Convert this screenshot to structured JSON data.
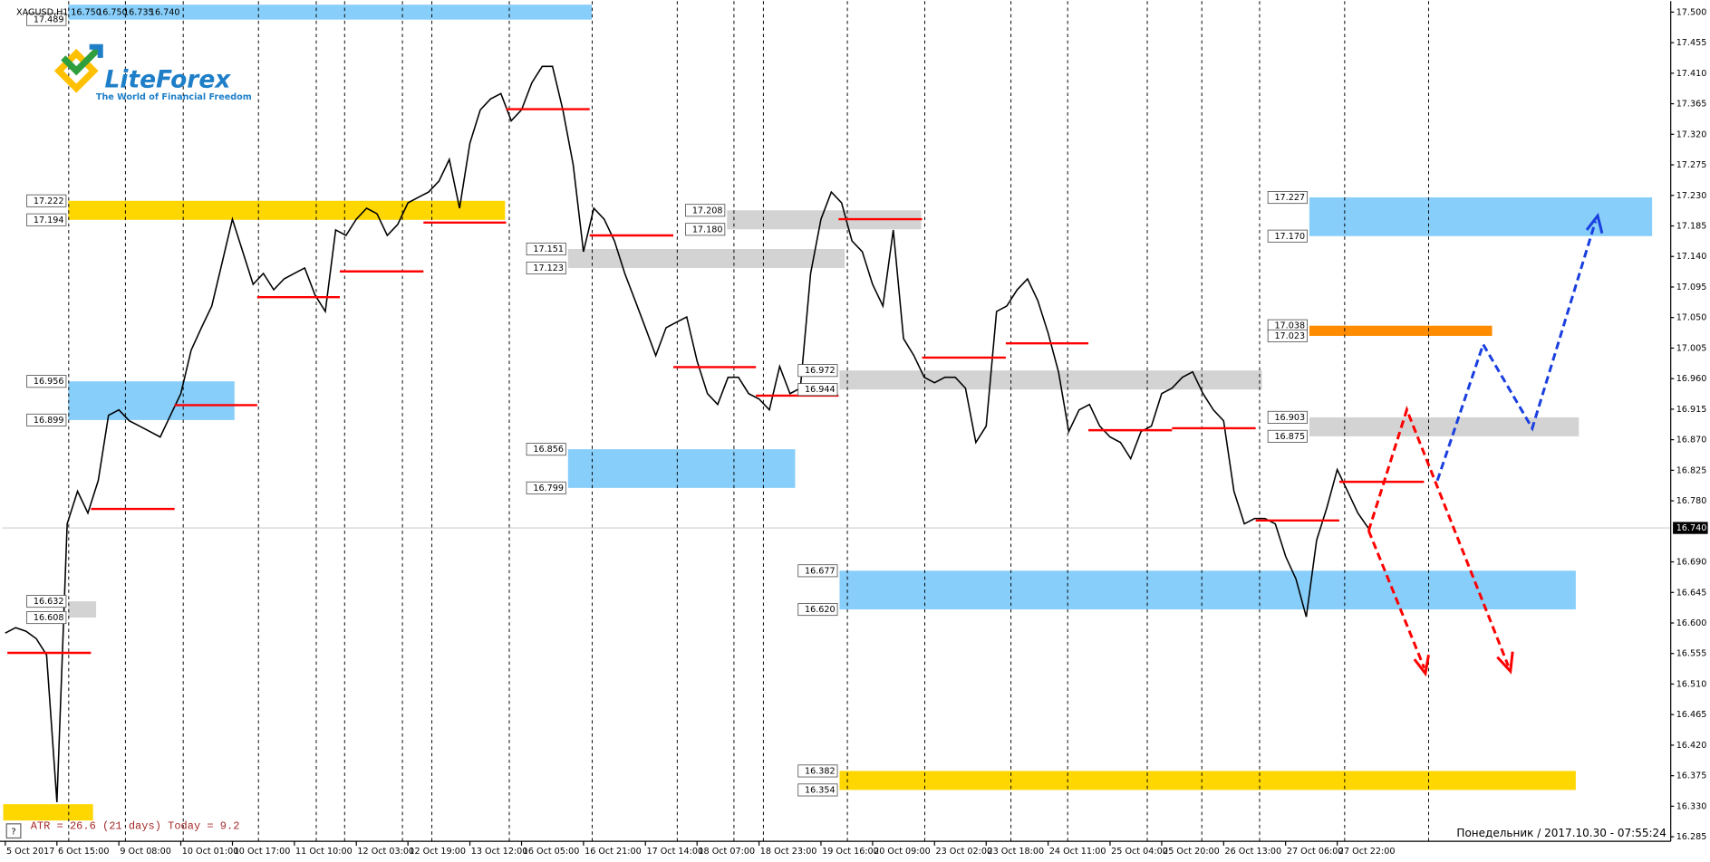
{
  "header": {
    "symbol": "XAGUSD,H1",
    "ohlc": [
      "16.750",
      "16.750",
      "16.735",
      "16.740"
    ]
  },
  "logo": {
    "name": "LiteForex",
    "tagline": "The World of Financial Freedom"
  },
  "chart_data": {
    "type": "line",
    "color": "#000000",
    "x": [
      0,
      1,
      2,
      3,
      4,
      5,
      6,
      7,
      8,
      9,
      10,
      11,
      12,
      13,
      14,
      15,
      16,
      17,
      18,
      19,
      20,
      21,
      22,
      23,
      24,
      25,
      26,
      27,
      28,
      29,
      30,
      31,
      32,
      33,
      34,
      35,
      36,
      37,
      38,
      39,
      40,
      41,
      42,
      43,
      44,
      45,
      46,
      47,
      48,
      49,
      50,
      51,
      52,
      53,
      54,
      55,
      56,
      57,
      58,
      59,
      60,
      61,
      62,
      63,
      64,
      65,
      66,
      67,
      68,
      69,
      70,
      71,
      72,
      73,
      74,
      75,
      76,
      77,
      78,
      79,
      80,
      81,
      82,
      83,
      84,
      85,
      86,
      87,
      88,
      89,
      90,
      91,
      92,
      93,
      94,
      95,
      96,
      97,
      98,
      99,
      100,
      101,
      102,
      103,
      104,
      105,
      106,
      107,
      108,
      109,
      110,
      111,
      112,
      113,
      114,
      115,
      116,
      117,
      118,
      119,
      120,
      121,
      122,
      123,
      124,
      125,
      126,
      127,
      128,
      129,
      130,
      131,
      132
    ],
    "values": [
      16.585,
      16.593,
      16.588,
      16.577,
      16.553,
      16.336,
      16.746,
      16.794,
      16.762,
      16.81,
      16.906,
      16.914,
      16.898,
      16.89,
      16.882,
      16.874,
      16.906,
      16.938,
      17.002,
      17.035,
      17.067,
      17.131,
      17.195,
      17.147,
      17.099,
      17.115,
      17.091,
      17.107,
      17.115,
      17.123,
      17.083,
      17.059,
      17.179,
      17.171,
      17.195,
      17.211,
      17.203,
      17.171,
      17.187,
      17.219,
      17.227,
      17.235,
      17.251,
      17.283,
      17.211,
      17.307,
      17.356,
      17.372,
      17.38,
      17.34,
      17.356,
      17.396,
      17.42,
      17.42,
      17.356,
      17.275,
      17.147,
      17.211,
      17.195,
      17.163,
      17.115,
      17.075,
      17.035,
      16.994,
      17.035,
      17.043,
      17.051,
      16.986,
      16.938,
      16.922,
      16.962,
      16.962,
      16.938,
      16.93,
      16.914,
      16.978,
      16.938,
      16.946,
      17.115,
      17.195,
      17.235,
      17.219,
      17.163,
      17.147,
      17.099,
      17.067,
      17.179,
      17.019,
      16.994,
      16.962,
      16.954,
      16.962,
      16.962,
      16.946,
      16.866,
      16.89,
      17.059,
      17.067,
      17.091,
      17.107,
      17.075,
      17.027,
      16.97,
      16.882,
      16.914,
      16.922,
      16.89,
      16.874,
      16.866,
      16.842,
      16.882,
      16.89,
      16.938,
      16.946,
      16.962,
      16.97,
      16.938,
      16.914,
      16.898,
      16.794,
      16.746,
      16.754,
      16.754,
      16.746,
      16.698,
      16.665,
      16.609,
      16.722,
      16.77,
      16.826,
      16.794,
      16.762,
      16.74
    ],
    "xlim": [
      -0.3,
      161.3
    ],
    "xticks": [
      {
        "value": 0,
        "label": "5 Oct 2017"
      },
      {
        "value": 5,
        "label": "6 Oct 15:00"
      },
      {
        "value": 11,
        "label": "9 Oct 08:00"
      },
      {
        "value": 17,
        "label": "10 Oct 01:00"
      },
      {
        "value": 22,
        "label": "10 Oct 17:00"
      },
      {
        "value": 28,
        "label": "11 Oct 10:00"
      },
      {
        "value": 34,
        "label": "12 Oct 03:00"
      },
      {
        "value": 39,
        "label": "12 Oct 19:00"
      },
      {
        "value": 45,
        "label": "13 Oct 12:00"
      },
      {
        "value": 50,
        "label": "16 Oct 05:00"
      },
      {
        "value": 56,
        "label": "16 Oct 21:00"
      },
      {
        "value": 62,
        "label": "17 Oct 14:00"
      },
      {
        "value": 67,
        "label": "18 Oct 07:00"
      },
      {
        "value": 73,
        "label": "18 Oct 23:00"
      },
      {
        "value": 79,
        "label": "19 Oct 16:00"
      },
      {
        "value": 84,
        "label": "20 Oct 09:00"
      },
      {
        "value": 90,
        "label": "23 Oct 02:00"
      },
      {
        "value": 95,
        "label": "23 Oct 18:00"
      },
      {
        "value": 101,
        "label": "24 Oct 11:00"
      },
      {
        "value": 107,
        "label": "25 Oct 04:00"
      },
      {
        "value": 112,
        "label": "25 Oct 20:00"
      },
      {
        "value": 118,
        "label": "26 Oct 13:00"
      },
      {
        "value": 124,
        "label": "27 Oct 06:00"
      },
      {
        "value": 129,
        "label": "27 Oct 22:00"
      }
    ],
    "ylim": [
      16.28,
      17.513
    ],
    "yticks": [
      {
        "value": 17.5,
        "label": "17.500"
      },
      17.455,
      {
        "value": 17.41,
        "label": "17.410"
      },
      17.365,
      {
        "value": 17.32,
        "label": "17.320"
      },
      17.275,
      {
        "value": 17.23,
        "label": "17.230"
      },
      17.185,
      {
        "value": 17.14,
        "label": "17.140"
      },
      17.095,
      {
        "value": 17.05,
        "label": "17.050"
      },
      17.005,
      {
        "value": 16.96,
        "label": "16.960"
      },
      16.915,
      {
        "value": 16.87,
        "label": "16.870"
      },
      16.825,
      {
        "value": 16.78,
        "label": "16.780"
      },
      {
        "value": 16.69,
        "label": "16.690"
      },
      16.645,
      {
        "value": 16.6,
        "label": "16.600"
      },
      16.555,
      {
        "value": 16.51,
        "label": "16.510"
      },
      16.465,
      {
        "value": 16.42,
        "label": "16.420"
      },
      16.375,
      {
        "value": 16.33,
        "label": "16.330"
      },
      16.285
    ],
    "current_price": {
      "value": 16.74,
      "label": "16.740"
    },
    "zones": [
      {
        "values": [
          17.511,
          17.489
        ],
        "value_labels": [
          null,
          "17.489"
        ],
        "x": [
          6.1,
          56.8
        ],
        "color": "#87cefa"
      },
      {
        "values": [
          17.222,
          17.194
        ],
        "value_labels": [
          "17.222",
          "17.194"
        ],
        "x": [
          6.1,
          48.4
        ],
        "color": "#ffd700"
      },
      {
        "values": [
          16.956,
          16.899
        ],
        "value_labels": [
          "16.956",
          "16.899"
        ],
        "x": [
          6.1,
          22.2
        ],
        "color": "#87cefa"
      },
      {
        "values": [
          16.632,
          16.608
        ],
        "value_labels": [
          "16.632",
          "16.608"
        ],
        "x": [
          6.1,
          8.8
        ],
        "color": "#d3d3d3"
      },
      {
        "values": [
          16.333,
          16.309
        ],
        "x": [
          -0.2,
          8.5
        ],
        "color": "#ffd700"
      },
      {
        "values": [
          17.208,
          17.18
        ],
        "value_labels": [
          "17.208",
          "17.180"
        ],
        "x": [
          69.9,
          88.7
        ],
        "color": "#d3d3d3"
      },
      {
        "values": [
          17.151,
          17.123
        ],
        "value_labels": [
          "17.151",
          "17.123"
        ],
        "x": [
          54.5,
          81.3
        ],
        "color": "#d3d3d3"
      },
      {
        "values": [
          16.856,
          16.799
        ],
        "value_labels": [
          "16.856",
          "16.799"
        ],
        "x": [
          54.5,
          76.5
        ],
        "color": "#87cefa"
      },
      {
        "values": [
          16.972,
          16.944
        ],
        "value_labels": [
          "16.972",
          "16.944"
        ],
        "x": [
          80.8,
          121.7
        ],
        "color": "#d3d3d3"
      },
      {
        "values": [
          16.677,
          16.62
        ],
        "value_labels": [
          "16.677",
          "16.620"
        ],
        "x": [
          80.8,
          152.1
        ],
        "color": "#87cefa"
      },
      {
        "values": [
          16.382,
          16.354
        ],
        "value_labels": [
          "16.382",
          "16.354"
        ],
        "x": [
          80.8,
          152.1
        ],
        "color": "#ffd700"
      },
      {
        "values": [
          17.227,
          17.17
        ],
        "value_labels": [
          "17.227",
          "17.170"
        ],
        "x": [
          126.3,
          159.5
        ],
        "color": "#87cefa"
      },
      {
        "values": [
          17.038,
          17.023
        ],
        "value_labels": [
          "17.038",
          "17.023"
        ],
        "x": [
          126.3,
          144.0
        ],
        "color": "#ff8c00"
      },
      {
        "values": [
          16.903,
          16.875
        ],
        "value_labels": [
          "16.903",
          "16.875"
        ],
        "x": [
          126.3,
          152.4
        ],
        "color": "#d3d3d3"
      }
    ],
    "level_color": "#ff0000",
    "levels": [
      {
        "value": 16.556,
        "x": [
          0.2,
          8.3
        ]
      },
      {
        "value": 16.768,
        "x": [
          8.3,
          16.4
        ]
      },
      {
        "value": 16.921,
        "x": [
          16.4,
          24.4
        ]
      },
      {
        "value": 17.08,
        "x": [
          24.4,
          32.4
        ]
      },
      {
        "value": 17.118,
        "x": [
          32.4,
          40.5
        ]
      },
      {
        "value": 17.19,
        "x": [
          40.5,
          48.5
        ]
      },
      {
        "value": 17.357,
        "x": [
          48.5,
          56.6
        ]
      },
      {
        "value": 17.171,
        "x": [
          56.6,
          64.7
        ]
      },
      {
        "value": 16.977,
        "x": [
          64.7,
          72.7
        ]
      },
      {
        "value": 16.935,
        "x": [
          72.7,
          80.7
        ]
      },
      {
        "value": 17.195,
        "x": [
          80.7,
          88.8
        ]
      },
      {
        "value": 16.991,
        "x": [
          88.8,
          96.9
        ]
      },
      {
        "value": 17.012,
        "x": [
          96.9,
          104.9
        ]
      },
      {
        "value": 16.884,
        "x": [
          104.9,
          113.0
        ]
      },
      {
        "value": 16.887,
        "x": [
          113.0,
          121.1
        ]
      },
      {
        "value": 16.751,
        "x": [
          121.1,
          129.2
        ]
      },
      {
        "value": 16.808,
        "x": [
          129.2,
          137.4
        ]
      }
    ],
    "annotations": {
      "atr": "ATR = 26.6   (21 days)   Today = 9.2",
      "timestamp": "Понедельник / 2017.10.30 - 07:55:24"
    }
  }
}
